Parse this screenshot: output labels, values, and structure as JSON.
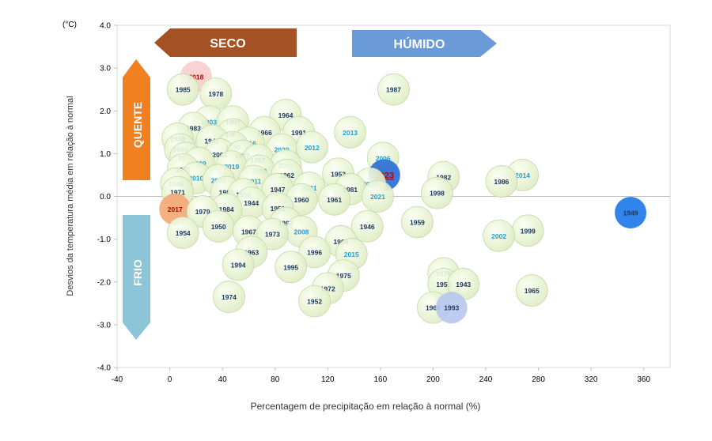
{
  "chart_data": {
    "type": "scatter",
    "title": "",
    "xlabel": "Percentagem de precipitação em relação à normal (%)",
    "ylabel": "Desvios da temperatura média em relação à normal",
    "yunit": "(°C)",
    "xlim": [
      -40,
      380
    ],
    "ylim": [
      -4.0,
      4.0
    ],
    "xticks": [
      "-40",
      "0",
      "40",
      "80",
      "120",
      "160",
      "200",
      "240",
      "280",
      "320",
      "360"
    ],
    "yticks": [
      "4.0",
      "3.0",
      "2.0",
      "1.0",
      "0.0",
      "-1.0",
      "-2.0",
      "-3.0",
      "-4.0"
    ],
    "grid": false,
    "zones": {
      "dry": "SECO",
      "wet": "HÚMIDO",
      "hot": "QUENTE",
      "cold": "FRIO"
    },
    "colors": {
      "bubble": "#e6f2cc",
      "bubble_edge": "#c6d8a8",
      "label_dark": "#17375e",
      "label_light": "#1ea0d8",
      "label_red": "#c00000",
      "seco_arrow": "#a0481a",
      "humido_arrow": "#6a9ad8",
      "quente_arrow": "#f08020",
      "frio_arrow": "#8cc4d8"
    },
    "points": [
      {
        "year": "2018",
        "x": 20,
        "y": 2.8,
        "fill": "#f9cfd0",
        "label": "red"
      },
      {
        "year": "1985",
        "x": 10,
        "y": 2.5
      },
      {
        "year": "1978",
        "x": 35,
        "y": 2.4
      },
      {
        "year": "1987",
        "x": 170,
        "y": 2.5
      },
      {
        "year": "1964",
        "x": 88,
        "y": 1.9
      },
      {
        "year": "2003",
        "x": 30,
        "y": 1.75,
        "label": "light"
      },
      {
        "year": "1997",
        "x": 48,
        "y": 1.75
      },
      {
        "year": "1983",
        "x": 18,
        "y": 1.6
      },
      {
        "year": "1980",
        "x": 48,
        "y": 1.45
      },
      {
        "year": "1966",
        "x": 72,
        "y": 1.5
      },
      {
        "year": "1991",
        "x": 98,
        "y": 1.5
      },
      {
        "year": "2013",
        "x": 137,
        "y": 1.5,
        "label": "light"
      },
      {
        "year": "1948",
        "x": 6,
        "y": 1.35
      },
      {
        "year": "1941",
        "x": 32,
        "y": 1.3
      },
      {
        "year": "2016",
        "x": 60,
        "y": 1.25,
        "label": "light"
      },
      {
        "year": "1988",
        "x": 8,
        "y": 1.1
      },
      {
        "year": "1990",
        "x": 48,
        "y": 1.15
      },
      {
        "year": "2020",
        "x": 85,
        "y": 1.1,
        "label": "light"
      },
      {
        "year": "2012",
        "x": 108,
        "y": 1.15,
        "label": "light"
      },
      {
        "year": "2004",
        "x": 38,
        "y": 0.98
      },
      {
        "year": "1977",
        "x": 55,
        "y": 0.95
      },
      {
        "year": "1970",
        "x": 12,
        "y": 0.9
      },
      {
        "year": "1957",
        "x": 67,
        "y": 0.85
      },
      {
        "year": "2006",
        "x": 162,
        "y": 0.9,
        "label": "light"
      },
      {
        "year": "2009",
        "x": 22,
        "y": 0.78,
        "label": "light"
      },
      {
        "year": "2019",
        "x": 47,
        "y": 0.7,
        "label": "light"
      },
      {
        "year": "2007",
        "x": 88,
        "y": 0.72,
        "label": "light"
      },
      {
        "year": "1955",
        "x": 10,
        "y": 0.63
      },
      {
        "year": "2000",
        "x": 68,
        "y": 0.6,
        "label": "light"
      },
      {
        "year": "1962",
        "x": 89,
        "y": 0.5
      },
      {
        "year": "1953",
        "x": 128,
        "y": 0.53
      },
      {
        "year": "2023",
        "x": 163,
        "y": 0.5,
        "fill": "#2a6fd8",
        "label": "red",
        "emphasis": true
      },
      {
        "year": "1982",
        "x": 208,
        "y": 0.45
      },
      {
        "year": "2014",
        "x": 268,
        "y": 0.5,
        "label": "light"
      },
      {
        "year": "2010",
        "x": 20,
        "y": 0.43,
        "label": "light"
      },
      {
        "year": "2005",
        "x": 37,
        "y": 0.38,
        "label": "light"
      },
      {
        "year": "2011",
        "x": 64,
        "y": 0.36,
        "label": "light"
      },
      {
        "year": "1986",
        "x": 252,
        "y": 0.35
      },
      {
        "year": "1945",
        "x": 5,
        "y": 0.3
      },
      {
        "year": "2022",
        "x": 152,
        "y": 0.3,
        "label": "light"
      },
      {
        "year": "2001",
        "x": 106,
        "y": 0.2,
        "label": "light"
      },
      {
        "year": "1981",
        "x": 137,
        "y": 0.17
      },
      {
        "year": "1947",
        "x": 82,
        "y": 0.17
      },
      {
        "year": "1989",
        "x": 43,
        "y": 0.1
      },
      {
        "year": "1971",
        "x": 6,
        "y": 0.1
      },
      {
        "year": "1998",
        "x": 203,
        "y": 0.08
      },
      {
        "year": "1958",
        "x": 56,
        "y": 0.05
      },
      {
        "year": "2021",
        "x": 158,
        "y": 0.0,
        "label": "light"
      },
      {
        "year": "1961",
        "x": 125,
        "y": -0.07
      },
      {
        "year": "1960",
        "x": 100,
        "y": -0.07
      },
      {
        "year": "1944",
        "x": 62,
        "y": -0.15
      },
      {
        "year": "2017",
        "x": 4,
        "y": -0.3,
        "fill": "#f4a875",
        "label": "red"
      },
      {
        "year": "1949",
        "x": 350,
        "y": -0.38,
        "fill": "#1f7be8",
        "label": "dark"
      },
      {
        "year": "1984",
        "x": 43,
        "y": -0.3
      },
      {
        "year": "1951",
        "x": 82,
        "y": -0.28
      },
      {
        "year": "1979",
        "x": 25,
        "y": -0.35
      },
      {
        "year": "1959",
        "x": 188,
        "y": -0.6
      },
      {
        "year": "1946",
        "x": 150,
        "y": -0.7
      },
      {
        "year": "1992",
        "x": 88,
        "y": -0.62
      },
      {
        "year": "1950",
        "x": 37,
        "y": -0.7
      },
      {
        "year": "1999",
        "x": 272,
        "y": -0.8
      },
      {
        "year": "1954",
        "x": 10,
        "y": -0.85
      },
      {
        "year": "2008",
        "x": 100,
        "y": -0.82,
        "label": "light"
      },
      {
        "year": "1967",
        "x": 60,
        "y": -0.82
      },
      {
        "year": "1973",
        "x": 78,
        "y": -0.88
      },
      {
        "year": "2002",
        "x": 250,
        "y": -0.92,
        "label": "light"
      },
      {
        "year": "1968",
        "x": 130,
        "y": -1.05
      },
      {
        "year": "1996",
        "x": 110,
        "y": -1.3
      },
      {
        "year": "1963",
        "x": 62,
        "y": -1.3
      },
      {
        "year": "2015",
        "x": 138,
        "y": -1.35,
        "label": "light"
      },
      {
        "year": "1994",
        "x": 52,
        "y": -1.6
      },
      {
        "year": "1995",
        "x": 92,
        "y": -1.65
      },
      {
        "year": "1976",
        "x": 208,
        "y": -1.8
      },
      {
        "year": "1975",
        "x": 132,
        "y": -1.85
      },
      {
        "year": "1956",
        "x": 208,
        "y": -2.05
      },
      {
        "year": "1943",
        "x": 223,
        "y": -2.05
      },
      {
        "year": "1972",
        "x": 120,
        "y": -2.15
      },
      {
        "year": "1965",
        "x": 275,
        "y": -2.2
      },
      {
        "year": "1974",
        "x": 45,
        "y": -2.35
      },
      {
        "year": "1952",
        "x": 110,
        "y": -2.45
      },
      {
        "year": "1969",
        "x": 200,
        "y": -2.6
      },
      {
        "year": "1993",
        "x": 214,
        "y": -2.6,
        "fill": "#b8c8ee",
        "label": "dark"
      }
    ]
  }
}
